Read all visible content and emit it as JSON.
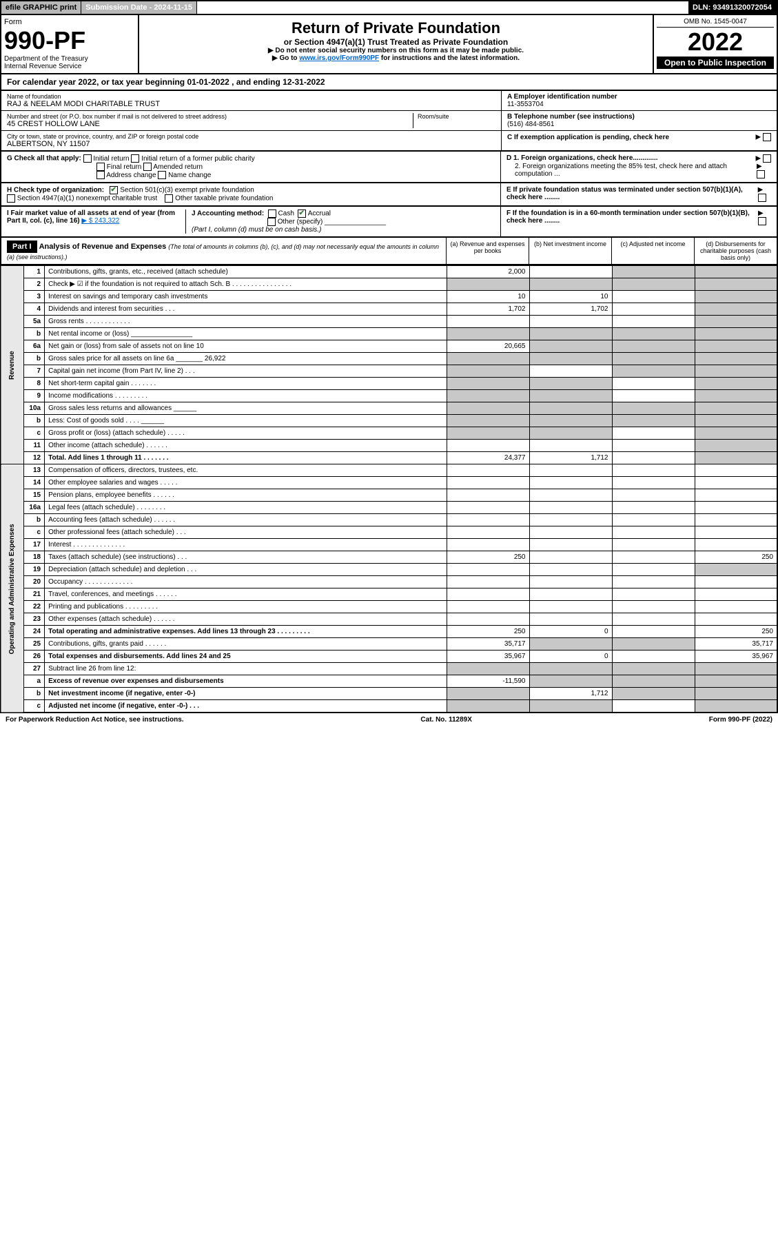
{
  "top": {
    "efile": "efile GRAPHIC print",
    "sub_label": "Submission Date - 2024-11-15",
    "dln": "DLN: 93491320072054"
  },
  "header": {
    "form_word": "Form",
    "form_no": "990-PF",
    "dept": "Department of the Treasury",
    "irs": "Internal Revenue Service",
    "title": "Return of Private Foundation",
    "subtitle": "or Section 4947(a)(1) Trust Treated as Private Foundation",
    "note1": "▶ Do not enter social security numbers on this form as it may be made public.",
    "note2_pre": "▶ Go to ",
    "note2_link": "www.irs.gov/Form990PF",
    "note2_post": " for instructions and the latest information.",
    "omb": "OMB No. 1545-0047",
    "year": "2022",
    "inspection": "Open to Public Inspection"
  },
  "cal_year": "For calendar year 2022, or tax year beginning 01-01-2022                           , and ending 12-31-2022",
  "info": {
    "name_label": "Name of foundation",
    "name": "RAJ & NEELAM MODI CHARITABLE TRUST",
    "addr_label": "Number and street (or P.O. box number if mail is not delivered to street address)",
    "addr": "45 CREST HOLLOW LANE",
    "room_label": "Room/suite",
    "city_label": "City or town, state or province, country, and ZIP or foreign postal code",
    "city": "ALBERTSON, NY  11507",
    "a_label": "A Employer identification number",
    "a_val": "11-3553704",
    "b_label": "B Telephone number (see instructions)",
    "b_val": "(516) 484-8561",
    "c_label": "C If exemption application is pending, check here",
    "d1": "D 1. Foreign organizations, check here.............",
    "d2": "2. Foreign organizations meeting the 85% test, check here and attach computation ...",
    "e": "E  If private foundation status was terminated under section 507(b)(1)(A), check here ........",
    "f": "F  If the foundation is in a 60-month termination under section 507(b)(1)(B), check here ........"
  },
  "g": {
    "label": "G Check all that apply:",
    "initial": "Initial return",
    "initial_former": "Initial return of a former public charity",
    "final": "Final return",
    "amended": "Amended return",
    "address": "Address change",
    "name": "Name change"
  },
  "h": {
    "label": "H Check type of organization:",
    "501c3": "Section 501(c)(3) exempt private foundation",
    "4947": "Section 4947(a)(1) nonexempt charitable trust",
    "other": "Other taxable private foundation"
  },
  "i": {
    "label": "I Fair market value of all assets at end of year (from Part II, col. (c), line 16)",
    "val": "▶ $  243,322"
  },
  "j": {
    "label": "J Accounting method:",
    "cash": "Cash",
    "accrual": "Accrual",
    "other": "Other (specify)",
    "note": "(Part I, column (d) must be on cash basis.)"
  },
  "part1": {
    "hdr": "Part I",
    "title": "Analysis of Revenue and Expenses",
    "desc": "(The total of amounts in columns (b), (c), and (d) may not necessarily equal the amounts in column (a) (see instructions).)",
    "col_a": "(a)    Revenue and expenses per books",
    "col_b": "(b)    Net investment income",
    "col_c": "(c)    Adjusted net income",
    "col_d": "(d)   Disbursements for charitable purposes (cash basis only)"
  },
  "side": {
    "revenue": "Revenue",
    "expenses": "Operating and Administrative Expenses"
  },
  "rows": [
    {
      "n": "1",
      "d": "Contributions, gifts, grants, etc., received (attach schedule)",
      "a": "2,000",
      "b": "",
      "c": "shade",
      "dd": "shade"
    },
    {
      "n": "2",
      "d": "Check ▶ ☑ if the foundation is not required to attach Sch. B     .   .   .   .   .   .   .   .   .   .   .   .   .   .   .   .",
      "a": "shade",
      "b": "shade",
      "c": "shade",
      "dd": "shade"
    },
    {
      "n": "3",
      "d": "Interest on savings and temporary cash investments",
      "a": "10",
      "b": "10",
      "c": "",
      "dd": "shade"
    },
    {
      "n": "4",
      "d": "Dividends and interest from securities     .   .   .",
      "a": "1,702",
      "b": "1,702",
      "c": "",
      "dd": "shade"
    },
    {
      "n": "5a",
      "d": "Gross rents     .   .   .   .   .   .   .   .   .   .   .   .",
      "a": "",
      "b": "",
      "c": "",
      "dd": "shade"
    },
    {
      "n": "b",
      "d": "Net rental income or (loss)  ________________",
      "a": "shade",
      "b": "shade",
      "c": "shade",
      "dd": "shade"
    },
    {
      "n": "6a",
      "d": "Net gain or (loss) from sale of assets not on line 10",
      "a": "20,665",
      "b": "shade",
      "c": "shade",
      "dd": "shade"
    },
    {
      "n": "b",
      "d": "Gross sales price for all assets on line 6a _______ 26,922",
      "a": "shade",
      "b": "shade",
      "c": "shade",
      "dd": "shade"
    },
    {
      "n": "7",
      "d": "Capital gain net income (from Part IV, line 2)    .   .   .",
      "a": "shade",
      "b": "",
      "c": "shade",
      "dd": "shade"
    },
    {
      "n": "8",
      "d": "Net short-term capital gain   .   .   .   .   .   .   .",
      "a": "shade",
      "b": "shade",
      "c": "",
      "dd": "shade"
    },
    {
      "n": "9",
      "d": "Income modifications   .   .   .   .   .   .   .   .   .",
      "a": "shade",
      "b": "shade",
      "c": "",
      "dd": "shade"
    },
    {
      "n": "10a",
      "d": "Gross sales less returns and allowances  ______",
      "a": "shade",
      "b": "shade",
      "c": "shade",
      "dd": "shade"
    },
    {
      "n": "b",
      "d": "Less: Cost of goods sold     .   .   .   .   ______",
      "a": "shade",
      "b": "shade",
      "c": "shade",
      "dd": "shade"
    },
    {
      "n": "c",
      "d": "Gross profit or (loss) (attach schedule)    .   .   .   .   .",
      "a": "shade",
      "b": "shade",
      "c": "",
      "dd": "shade"
    },
    {
      "n": "11",
      "d": "Other income (attach schedule)    .   .   .   .   .   .",
      "a": "",
      "b": "",
      "c": "",
      "dd": "shade"
    },
    {
      "n": "12",
      "d": "Total. Add lines 1 through 11    .   .   .   .   .   .   .",
      "a": "24,377",
      "b": "1,712",
      "c": "",
      "dd": "shade",
      "bold": true
    },
    {
      "n": "13",
      "d": "Compensation of officers, directors, trustees, etc.",
      "a": "",
      "b": "",
      "c": "",
      "dd": ""
    },
    {
      "n": "14",
      "d": "Other employee salaries and wages    .   .   .   .   .",
      "a": "",
      "b": "",
      "c": "",
      "dd": ""
    },
    {
      "n": "15",
      "d": "Pension plans, employee benefits   .   .   .   .   .   .",
      "a": "",
      "b": "",
      "c": "",
      "dd": ""
    },
    {
      "n": "16a",
      "d": "Legal fees (attach schedule)  .   .   .   .   .   .   .   .",
      "a": "",
      "b": "",
      "c": "",
      "dd": ""
    },
    {
      "n": "b",
      "d": "Accounting fees (attach schedule)  .   .   .   .   .   .",
      "a": "",
      "b": "",
      "c": "",
      "dd": ""
    },
    {
      "n": "c",
      "d": "Other professional fees (attach schedule)    .   .   .",
      "a": "",
      "b": "",
      "c": "",
      "dd": ""
    },
    {
      "n": "17",
      "d": "Interest  .   .   .   .   .   .   .   .   .   .   .   .   .   .",
      "a": "",
      "b": "",
      "c": "",
      "dd": ""
    },
    {
      "n": "18",
      "d": "Taxes (attach schedule) (see instructions)    .   .   .",
      "a": "250",
      "b": "",
      "c": "",
      "dd": "250"
    },
    {
      "n": "19",
      "d": "Depreciation (attach schedule) and depletion    .   .   .",
      "a": "",
      "b": "",
      "c": "",
      "dd": "shade"
    },
    {
      "n": "20",
      "d": "Occupancy  .   .   .   .   .   .   .   .   .   .   .   .   .",
      "a": "",
      "b": "",
      "c": "",
      "dd": ""
    },
    {
      "n": "21",
      "d": "Travel, conferences, and meetings  .   .   .   .   .   .",
      "a": "",
      "b": "",
      "c": "",
      "dd": ""
    },
    {
      "n": "22",
      "d": "Printing and publications  .   .   .   .   .   .   .   .   .",
      "a": "",
      "b": "",
      "c": "",
      "dd": ""
    },
    {
      "n": "23",
      "d": "Other expenses (attach schedule)   .   .   .   .   .   .",
      "a": "",
      "b": "",
      "c": "",
      "dd": ""
    },
    {
      "n": "24",
      "d": "Total operating and administrative expenses. Add lines 13 through 23    .   .   .   .   .   .   .   .   .",
      "a": "250",
      "b": "0",
      "c": "",
      "dd": "250",
      "bold": true
    },
    {
      "n": "25",
      "d": "Contributions, gifts, grants paid     .   .   .   .   .   .",
      "a": "35,717",
      "b": "shade",
      "c": "shade",
      "dd": "35,717"
    },
    {
      "n": "26",
      "d": "Total expenses and disbursements. Add lines 24 and 25",
      "a": "35,967",
      "b": "0",
      "c": "",
      "dd": "35,967",
      "bold": true
    },
    {
      "n": "27",
      "d": "Subtract line 26 from line 12:",
      "a": "shade",
      "b": "shade",
      "c": "shade",
      "dd": "shade"
    },
    {
      "n": "a",
      "d": "Excess of revenue over expenses and disbursements",
      "a": "-11,590",
      "b": "shade",
      "c": "shade",
      "dd": "shade",
      "bold": true
    },
    {
      "n": "b",
      "d": "Net investment income (if negative, enter -0-)",
      "a": "shade",
      "b": "1,712",
      "c": "shade",
      "dd": "shade",
      "bold": true
    },
    {
      "n": "c",
      "d": "Adjusted net income (if negative, enter -0-)   .   .   .",
      "a": "shade",
      "b": "shade",
      "c": "",
      "dd": "shade",
      "bold": true
    }
  ],
  "footer": {
    "left": "For Paperwork Reduction Act Notice, see instructions.",
    "mid": "Cat. No. 11289X",
    "right": "Form 990-PF (2022)"
  }
}
